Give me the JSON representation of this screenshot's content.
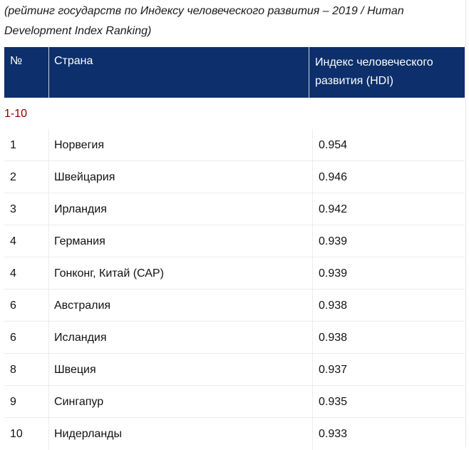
{
  "caption": "(рейтинг государств по Индексу человеческого развития – 2019 / Human Development Index Ranking)",
  "table": {
    "headers": {
      "rank": "№",
      "country": "Страна",
      "hdi": "Индекс человеческого развития (HDI)"
    },
    "group_label": "1-10",
    "rows": [
      {
        "rank": "1",
        "country": "Норвегия",
        "hdi": "0.954"
      },
      {
        "rank": "2",
        "country": "Швейцария",
        "hdi": "0.946"
      },
      {
        "rank": "3",
        "country": "Ирландия",
        "hdi": "0.942"
      },
      {
        "rank": "4",
        "country": "Германия",
        "hdi": "0.939"
      },
      {
        "rank": "4",
        "country": "Гонконг, Китай (САР)",
        "hdi": "0.939"
      },
      {
        "rank": "6",
        "country": "Австралия",
        "hdi": "0.938"
      },
      {
        "rank": "6",
        "country": "Исландия",
        "hdi": "0.938"
      },
      {
        "rank": "8",
        "country": "Швеция",
        "hdi": "0.937"
      },
      {
        "rank": "9",
        "country": "Сингапур",
        "hdi": "0.935"
      },
      {
        "rank": "10",
        "country": "Нидерланды",
        "hdi": "0.933"
      }
    ]
  },
  "colors": {
    "header_background": "#0d2f6b",
    "header_text": "#ffffff",
    "group_label": "#8b0000"
  }
}
